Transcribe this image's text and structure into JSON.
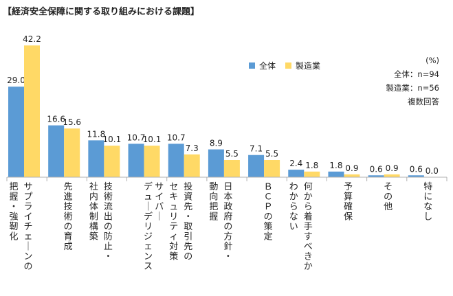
{
  "title": "【経済安全保障に関する取り組みにおける課題】",
  "notes": [
    "(%)",
    "全体：n=94",
    "製造業：n=56",
    "複数回答"
  ],
  "colors": {
    "all": "#5b9bd5",
    "manufacturing": "#ffd966",
    "axis": "#b0b0b0"
  },
  "chart_data": {
    "type": "bar",
    "categories": [
      "サプライチェーンの把握・強靭化",
      "先進技術の育成",
      "技術流出の防止・社内体制構築",
      "デューデリジェンス",
      "投資先・取引先のサイバーセキュリティ対策",
      "日本政府の方針・動向把握",
      "ＢＣＰの策定",
      "何から着手すべきかわからない",
      "予算確保",
      "その他",
      "特になし"
    ],
    "category_lines": [
      [
        "サプライチェーンの",
        "把握・強靭化"
      ],
      [
        "先進技術の育成"
      ],
      [
        "技術流出の防止・",
        "社内体制構築"
      ],
      [
        "デューデリジェンス"
      ],
      [
        "投資先・取引先の",
        "セキュリティ対策",
        "サイバー"
      ],
      [
        "日本政府の方針・",
        "動向把握"
      ],
      [
        "ＢＣＰの策定"
      ],
      [
        "何から着手すべきか",
        "わからない"
      ],
      [
        "予算確保"
      ],
      [
        "その他"
      ],
      [
        "特になし"
      ]
    ],
    "series": [
      {
        "name": "全体",
        "values": [
          29.0,
          16.6,
          11.8,
          10.7,
          10.7,
          8.9,
          7.1,
          2.4,
          1.8,
          0.6,
          0.6
        ]
      },
      {
        "name": "製造業",
        "values": [
          42.2,
          15.6,
          10.1,
          10.1,
          7.3,
          5.5,
          5.5,
          1.8,
          0.9,
          0.9,
          0.0
        ]
      }
    ],
    "data_labels": {
      "全体": [
        "29.0",
        "16.6",
        "11.8",
        "10.7",
        "10.7",
        "8.9",
        "7.1",
        "2.4",
        "1.8",
        "0.6",
        "0.6"
      ],
      "製造業": [
        "42.2",
        "15.6",
        "10.1",
        "10.1",
        "7.3",
        "5.5",
        "5.5",
        "1.8",
        "0.9",
        "0.9",
        "0.0"
      ]
    },
    "ylim": [
      0,
      44
    ],
    "unit": "%",
    "legend": "top-right",
    "grid": false
  }
}
